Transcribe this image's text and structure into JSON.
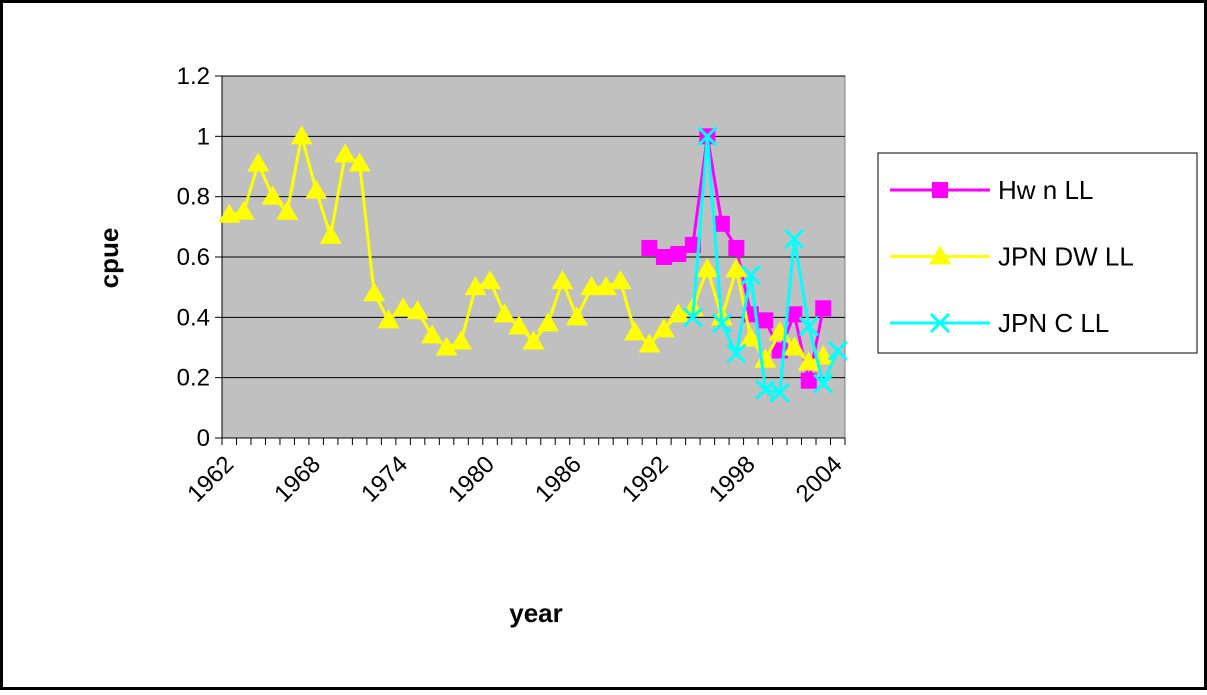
{
  "chart_data": {
    "type": "line",
    "x_label": "year",
    "y_label": "cpue",
    "categories": [
      1962,
      null,
      null,
      null,
      null,
      null,
      1968,
      null,
      null,
      null,
      null,
      null,
      1974,
      null,
      null,
      null,
      null,
      null,
      1980,
      null,
      null,
      null,
      null,
      null,
      1986,
      null,
      null,
      null,
      null,
      null,
      1992,
      null,
      null,
      null,
      null,
      null,
      1998,
      null,
      null,
      null,
      null,
      null,
      2004
    ],
    "series": [
      {
        "name": "Hw n LL",
        "color": "#ff00ff",
        "marker": "square",
        "values": [
          null,
          null,
          null,
          null,
          null,
          null,
          null,
          null,
          null,
          null,
          null,
          null,
          null,
          null,
          null,
          null,
          null,
          null,
          null,
          null,
          null,
          null,
          null,
          null,
          null,
          null,
          null,
          null,
          null,
          0.63,
          0.6,
          0.61,
          0.64,
          1.0,
          0.71,
          0.63,
          0.41,
          0.39,
          0.29,
          0.41,
          0.19,
          0.43,
          null
        ]
      },
      {
        "name": "JPN DW LL",
        "color": "#ffff00",
        "marker": "triangle",
        "values": [
          0.74,
          0.75,
          0.91,
          0.8,
          0.75,
          1.0,
          0.82,
          0.67,
          0.94,
          0.91,
          0.48,
          0.39,
          0.43,
          0.42,
          0.34,
          0.3,
          0.32,
          0.5,
          0.52,
          0.41,
          0.37,
          0.32,
          0.38,
          0.52,
          0.4,
          0.5,
          0.5,
          0.52,
          0.35,
          0.31,
          0.36,
          0.41,
          0.43,
          0.56,
          0.4,
          0.56,
          0.33,
          0.26,
          0.35,
          0.3,
          0.25,
          0.27,
          null
        ]
      },
      {
        "name": "JPN C LL",
        "color": "#00ffff",
        "marker": "x",
        "values": [
          null,
          null,
          null,
          null,
          null,
          null,
          null,
          null,
          null,
          null,
          null,
          null,
          null,
          null,
          null,
          null,
          null,
          null,
          null,
          null,
          null,
          null,
          null,
          null,
          null,
          null,
          null,
          null,
          null,
          null,
          null,
          null,
          0.4,
          1.0,
          0.38,
          0.28,
          0.54,
          0.16,
          0.15,
          0.66,
          0.37,
          0.18,
          0.29
        ]
      }
    ],
    "ylim": [
      0,
      1.2
    ],
    "yticks": [
      0,
      0.2,
      0.4,
      0.6,
      0.8,
      1,
      1.2
    ],
    "grid": true,
    "legend": "right"
  }
}
